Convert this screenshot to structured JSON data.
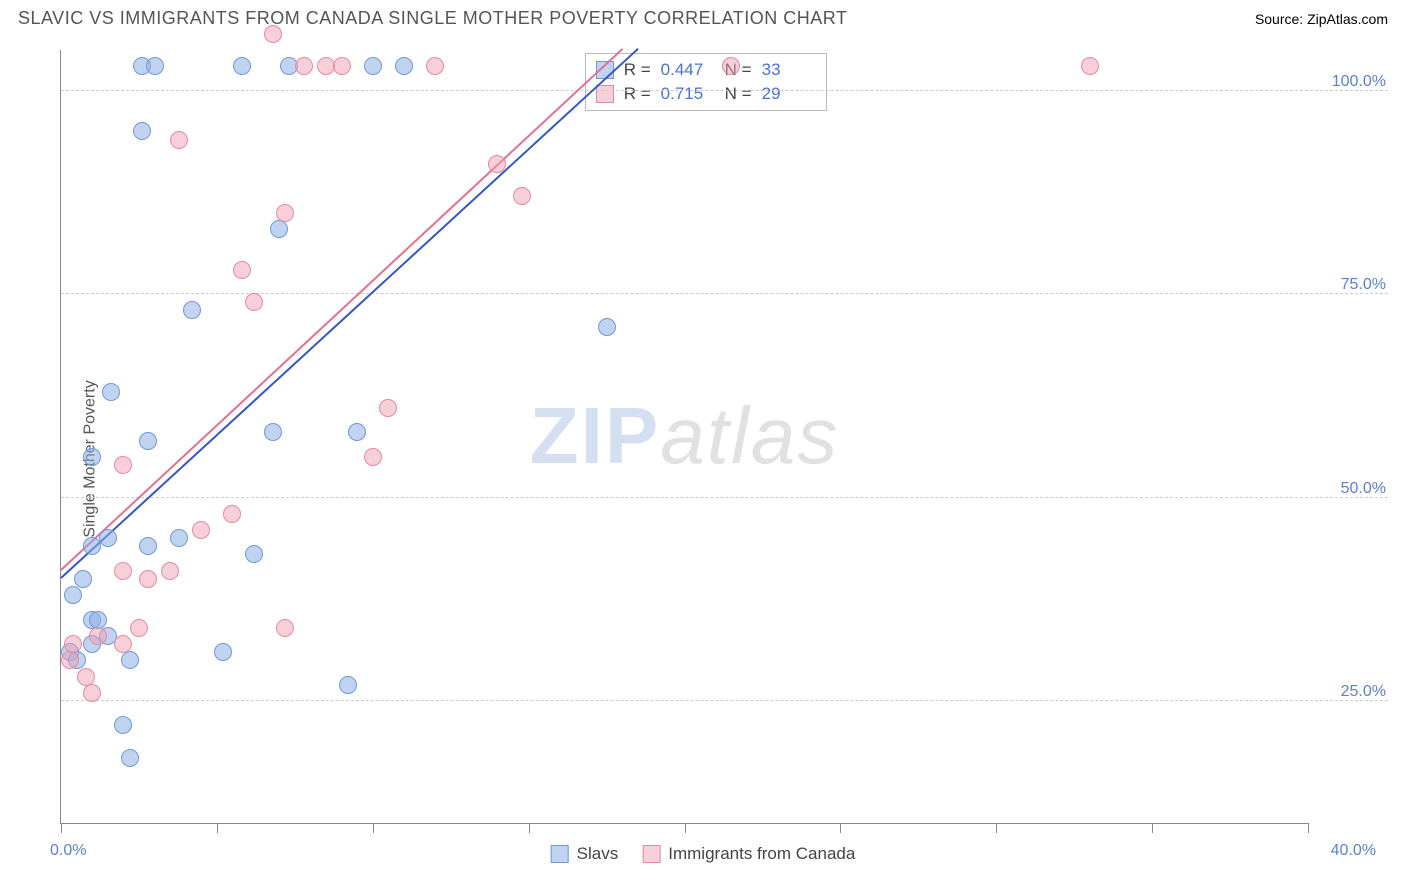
{
  "header": {
    "title": "SLAVIC VS IMMIGRANTS FROM CANADA SINGLE MOTHER POVERTY CORRELATION CHART",
    "source_label": "Source: ZipAtlas.com"
  },
  "watermark": {
    "left": "ZIP",
    "right": "atlas"
  },
  "chart": {
    "type": "scatter",
    "ylabel": "Single Mother Poverty",
    "background_color": "#ffffff",
    "grid_color": "#cccccc",
    "axis_color": "#888888",
    "tick_label_color": "#5b7fd1",
    "xlim": [
      0,
      40
    ],
    "ylim": [
      10,
      105
    ],
    "x_min_label": "0.0%",
    "x_max_label": "40.0%",
    "xtick_positions": [
      0,
      5,
      10,
      15,
      20,
      25,
      30,
      35,
      40
    ],
    "yticks": [
      {
        "value": 25,
        "label": "25.0%"
      },
      {
        "value": 50,
        "label": "50.0%"
      },
      {
        "value": 75,
        "label": "75.0%"
      },
      {
        "value": 100,
        "label": "100.0%"
      }
    ],
    "marker_radius": 9,
    "marker_border_width": 1.5,
    "series": [
      {
        "key": "slavs",
        "label": "Slavs",
        "fill": "rgba(140,175,230,0.55)",
        "stroke": "#6f99d8",
        "R_label": "R =",
        "R": "0.447",
        "N_label": "N =",
        "N": "33",
        "regression": {
          "x1": 0,
          "y1": 40,
          "x2": 18.5,
          "y2": 105,
          "color": "#3556c6",
          "width": 2
        },
        "points": [
          {
            "x": 0.3,
            "y": 31
          },
          {
            "x": 0.5,
            "y": 30
          },
          {
            "x": 0.4,
            "y": 38
          },
          {
            "x": 0.7,
            "y": 40
          },
          {
            "x": 1.0,
            "y": 32
          },
          {
            "x": 1.0,
            "y": 35
          },
          {
            "x": 1.2,
            "y": 35
          },
          {
            "x": 1.5,
            "y": 33
          },
          {
            "x": 1.0,
            "y": 44
          },
          {
            "x": 1.5,
            "y": 45
          },
          {
            "x": 1.0,
            "y": 55
          },
          {
            "x": 2.0,
            "y": 22
          },
          {
            "x": 2.2,
            "y": 18
          },
          {
            "x": 2.2,
            "y": 30
          },
          {
            "x": 2.6,
            "y": 95
          },
          {
            "x": 2.6,
            "y": 103
          },
          {
            "x": 3.0,
            "y": 103
          },
          {
            "x": 1.6,
            "y": 63
          },
          {
            "x": 2.8,
            "y": 44
          },
          {
            "x": 2.8,
            "y": 57
          },
          {
            "x": 3.8,
            "y": 45
          },
          {
            "x": 4.2,
            "y": 73
          },
          {
            "x": 5.2,
            "y": 31
          },
          {
            "x": 5.8,
            "y": 103
          },
          {
            "x": 6.2,
            "y": 43
          },
          {
            "x": 6.8,
            "y": 58
          },
          {
            "x": 7.0,
            "y": 83
          },
          {
            "x": 7.3,
            "y": 103
          },
          {
            "x": 9.2,
            "y": 27
          },
          {
            "x": 9.5,
            "y": 58
          },
          {
            "x": 10.0,
            "y": 103
          },
          {
            "x": 11.0,
            "y": 103
          },
          {
            "x": 17.5,
            "y": 71
          }
        ]
      },
      {
        "key": "canada",
        "label": "Immigrants from Canada",
        "fill": "rgba(240,160,180,0.50)",
        "stroke": "#e48aa0",
        "R_label": "R =",
        "R": "0.715",
        "N_label": "N =",
        "N": "29",
        "regression": {
          "x1": 0,
          "y1": 41,
          "x2": 18,
          "y2": 105,
          "color": "#e66f8f",
          "width": 2
        },
        "points": [
          {
            "x": 0.3,
            "y": 30
          },
          {
            "x": 0.4,
            "y": 32
          },
          {
            "x": 0.8,
            "y": 28
          },
          {
            "x": 1.0,
            "y": 26
          },
          {
            "x": 1.2,
            "y": 33
          },
          {
            "x": 2.0,
            "y": 32
          },
          {
            "x": 2.0,
            "y": 41
          },
          {
            "x": 2.0,
            "y": 54
          },
          {
            "x": 2.5,
            "y": 34
          },
          {
            "x": 2.8,
            "y": 40
          },
          {
            "x": 3.5,
            "y": 41
          },
          {
            "x": 3.8,
            "y": 94
          },
          {
            "x": 4.5,
            "y": 46
          },
          {
            "x": 5.5,
            "y": 48
          },
          {
            "x": 5.8,
            "y": 78
          },
          {
            "x": 6.2,
            "y": 74
          },
          {
            "x": 6.8,
            "y": 107
          },
          {
            "x": 7.2,
            "y": 85
          },
          {
            "x": 7.2,
            "y": 34
          },
          {
            "x": 7.8,
            "y": 103
          },
          {
            "x": 8.5,
            "y": 103
          },
          {
            "x": 9.0,
            "y": 103
          },
          {
            "x": 10.0,
            "y": 55
          },
          {
            "x": 10.5,
            "y": 61
          },
          {
            "x": 12.0,
            "y": 103
          },
          {
            "x": 14.0,
            "y": 91
          },
          {
            "x": 14.8,
            "y": 87
          },
          {
            "x": 21.5,
            "y": 103
          },
          {
            "x": 33.0,
            "y": 103
          }
        ]
      }
    ]
  }
}
